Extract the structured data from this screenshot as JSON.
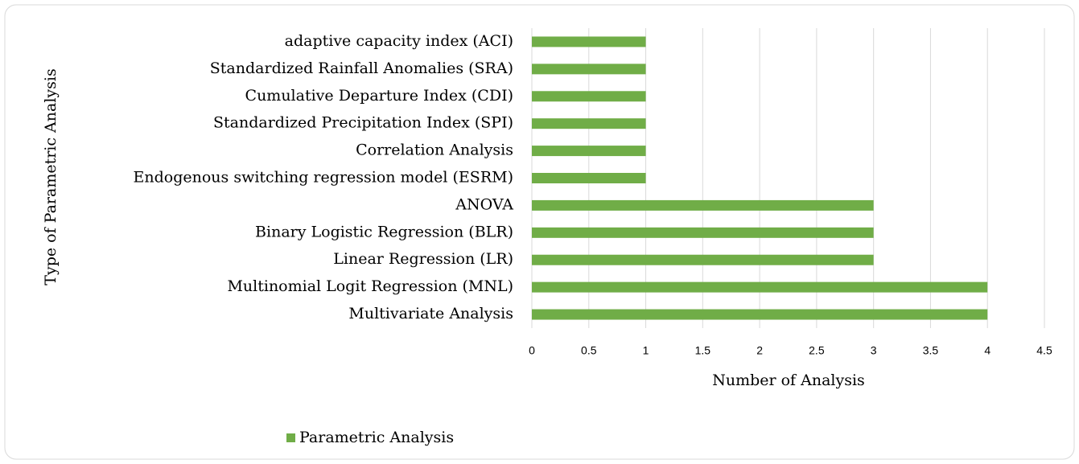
{
  "chart_data": {
    "type": "bar",
    "orientation": "horizontal",
    "xlabel": "Number of Analysis",
    "ylabel": "Type of Parametric Analysis",
    "categories": [
      "adaptive capacity index (ACI)",
      "Standardized Rainfall Anomalies (SRA)",
      "Cumulative Departure Index (CDI)",
      "Standardized Precipitation Index (SPI)",
      "Correlation Analysis",
      "Endogenous switching regression model (ESRM)",
      "ANOVA",
      "Binary Logistic Regression (BLR)",
      "Linear Regression (LR)",
      "Multinomial Logit Regression (MNL)",
      "Multivariate Analysis"
    ],
    "series": [
      {
        "name": "Parametric Analysis",
        "color": "#70ad47",
        "values": [
          1,
          1,
          1,
          1,
          1,
          1,
          3,
          3,
          3,
          4,
          4
        ]
      }
    ],
    "xlim": [
      0,
      4.5
    ],
    "xticks": [
      0,
      0.5,
      1,
      1.5,
      2,
      2.5,
      3,
      3.5,
      4,
      4.5
    ],
    "grid": true,
    "legend": "bottom"
  }
}
